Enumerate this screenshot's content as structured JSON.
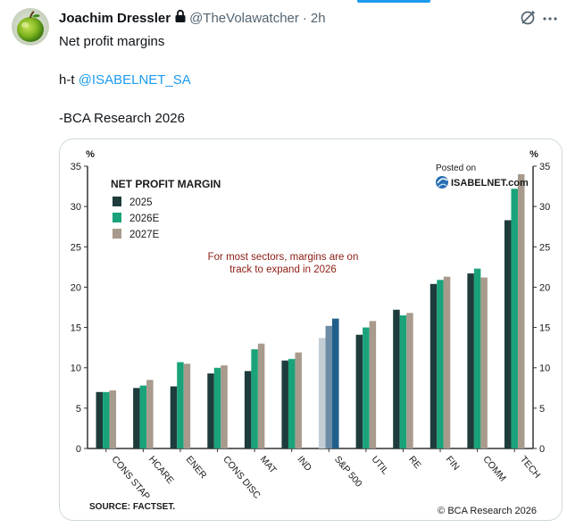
{
  "post": {
    "author_name": "Joachim Dressler",
    "handle": "@TheVolawatcher",
    "separator": "·",
    "time": "2h",
    "lines": [
      "Net profit margins",
      "h-t",
      "-BCA Research 2026"
    ],
    "mention": "@ISABELNET_SA"
  },
  "icons": {
    "avatar": "green-apple-avatar",
    "lock": "lock-icon",
    "grok": "grok-icon",
    "more": "more-icon"
  },
  "colors": {
    "accent": "#1d9bf0",
    "series_2025": "#1e3c3c",
    "series_2026": "#1aa37a",
    "series_2027": "#a89a8c",
    "sp500_2025": "#c2cdd4",
    "sp500_2026": "#6d8ca4",
    "sp500_2027": "#1f5f8a",
    "annotation": "#8c1c13"
  },
  "chart_data": {
    "type": "bar",
    "title": "NET PROFIT MARGIN",
    "ylabel": "%",
    "ylim": [
      0,
      35
    ],
    "yticks": [
      0,
      5,
      10,
      15,
      20,
      25,
      30,
      35
    ],
    "categories": [
      "CONS STAP",
      "HCARE",
      "ENER",
      "CONS DISC",
      "MAT",
      "IND",
      "S&P 500",
      "UTIL",
      "RE",
      "FIN",
      "COMM",
      "TECH"
    ],
    "series": [
      {
        "name": "2025",
        "values": [
          7.0,
          7.5,
          7.7,
          9.3,
          9.6,
          10.9,
          13.7,
          14.1,
          17.2,
          20.4,
          21.7,
          28.3
        ]
      },
      {
        "name": "2026E",
        "values": [
          7.0,
          7.8,
          10.7,
          10.0,
          12.3,
          11.1,
          15.2,
          15.0,
          16.5,
          20.9,
          22.3,
          32.2
        ]
      },
      {
        "name": "2027E",
        "values": [
          7.2,
          8.5,
          10.5,
          10.3,
          13.0,
          11.9,
          16.1,
          15.8,
          16.8,
          21.3,
          21.2,
          34.0
        ]
      }
    ],
    "highlight_category": "S&P 500",
    "annotation": [
      "For most sectors, margins are on",
      "track to expand in 2026"
    ],
    "watermark": [
      "Posted on",
      "ISABELNET.com"
    ],
    "source": "SOURCE: FACTSET.",
    "credit": "© BCA Research 2026",
    "legend_position": "top-left",
    "grid": false
  }
}
